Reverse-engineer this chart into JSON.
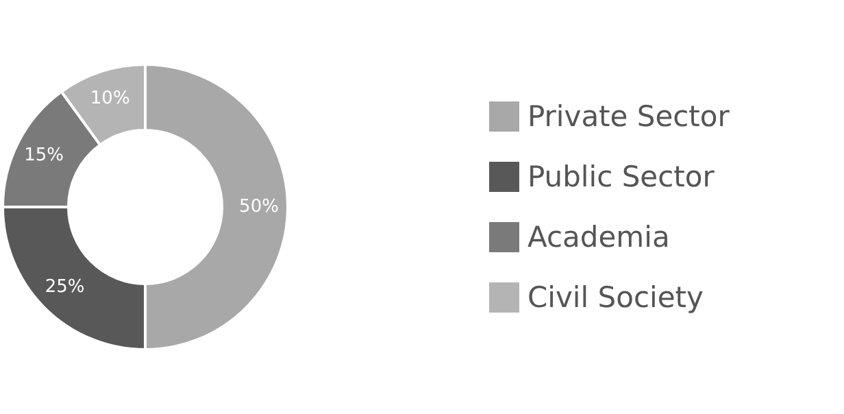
{
  "chart_data": {
    "type": "donut",
    "categories": [
      "Private Sector",
      "Public Sector",
      "Academia",
      "Civil Society"
    ],
    "values": [
      50,
      25,
      15,
      10
    ],
    "colors": [
      "#a8a8a8",
      "#585858",
      "#7a7a7a",
      "#b4b4b4"
    ],
    "value_labels": [
      "50%",
      "25%",
      "15%",
      "10%"
    ],
    "legend": "right"
  }
}
